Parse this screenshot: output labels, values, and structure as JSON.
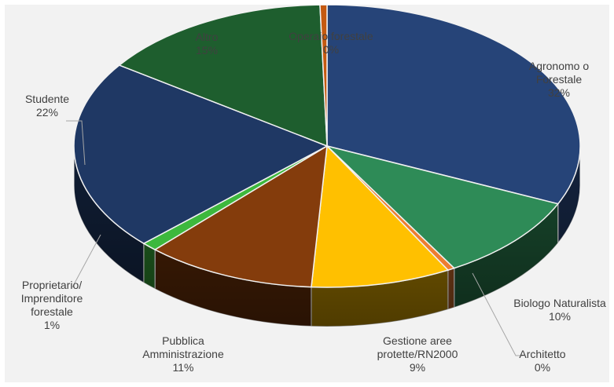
{
  "chart_data": {
    "type": "pie",
    "style": "3d",
    "title": "",
    "value_unit": "%",
    "slices": [
      {
        "name": "Agronomo o Forestale",
        "label_lines": [
          "Agronomo o",
          "Forestale"
        ],
        "value": 32,
        "value_label": "32%",
        "color": "#264478"
      },
      {
        "name": "Biologo Naturalista",
        "label_lines": [
          "Biologo Naturalista"
        ],
        "value": 10,
        "value_label": "10%",
        "color": "#2e8b57"
      },
      {
        "name": "Architetto",
        "label_lines": [
          "Architetto"
        ],
        "value": 0,
        "value_label": "0%",
        "color": "#ed7d31"
      },
      {
        "name": "Gestione aree protette/RN2000",
        "label_lines": [
          "Gestione aree",
          "protette/RN2000"
        ],
        "value": 9,
        "value_label": "9%",
        "color": "#ffc000"
      },
      {
        "name": "Pubblica Amministrazione",
        "label_lines": [
          "Pubblica",
          "Amministrazione"
        ],
        "value": 11,
        "value_label": "11%",
        "color": "#843c0c"
      },
      {
        "name": "Proprietario/Imprenditore forestale",
        "label_lines": [
          "Proprietario/",
          "Imprenditore",
          "forestale"
        ],
        "value": 1,
        "value_label": "1%",
        "color": "#3db83d"
      },
      {
        "name": "Studente",
        "label_lines": [
          "Studente"
        ],
        "value": 22,
        "value_label": "22%",
        "color": "#1f3864"
      },
      {
        "name": "Altro",
        "label_lines": [
          "Altro"
        ],
        "value": 15,
        "value_label": "15%",
        "color": "#1e5e2e"
      },
      {
        "name": "Operaio forestale",
        "label_lines": [
          "Operaio forestale"
        ],
        "value": 0,
        "value_label": "0%",
        "color": "#c55a11"
      }
    ]
  }
}
